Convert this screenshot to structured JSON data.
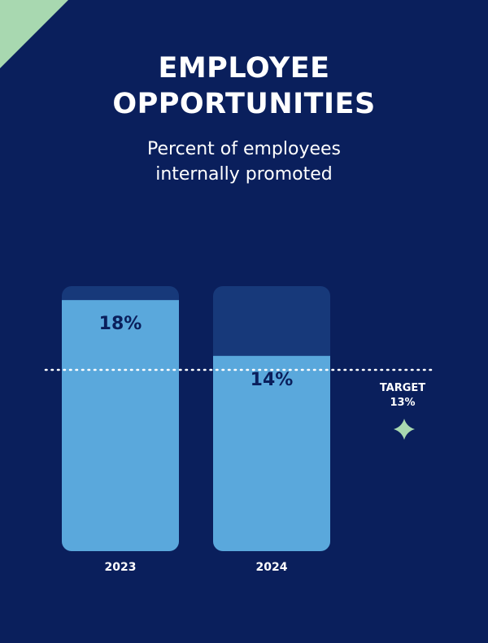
{
  "colors": {
    "background": "#0a1f5c",
    "bar_fill": "#5aa8dc",
    "bar_track": "#17397a",
    "value_text": "#0a1f5c",
    "accent": "#a8d8b0",
    "text": "#ffffff"
  },
  "header": {
    "title_line1": "EMPLOYEE",
    "title_line2": "OPPORTUNITIES",
    "subtitle_line1": "Percent of employees",
    "subtitle_line2": "internally promoted"
  },
  "chart_data": {
    "type": "bar",
    "title": "EMPLOYEE OPPORTUNITIES",
    "subtitle": "Percent of employees internally promoted",
    "categories": [
      "2023",
      "2024"
    ],
    "values": [
      18,
      14
    ],
    "value_labels": [
      "18%",
      "14%"
    ],
    "ylim": [
      0,
      19
    ],
    "grid": false,
    "reference_line": {
      "value": 13,
      "label": "TARGET",
      "value_label": "13%",
      "style": "dotted",
      "icon": "sparkle-icon"
    }
  }
}
